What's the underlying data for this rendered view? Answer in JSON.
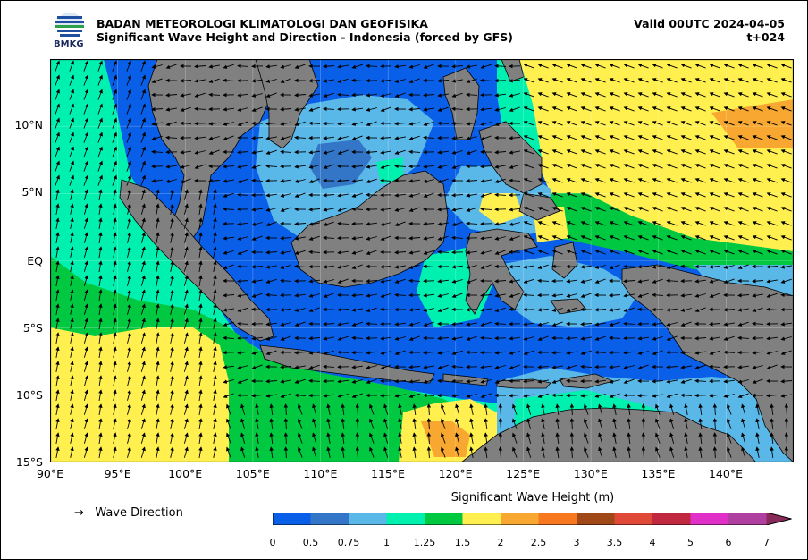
{
  "header": {
    "agency": "BADAN METEOROLOGI KLIMATOLOGI DAN GEOFISIKA",
    "product": "Significant Wave Height and Direction - Indonesia (forced by GFS)",
    "valid": "Valid 00UTC 2024-04-05",
    "lead": "t+024",
    "logo_text": "BMKG"
  },
  "map": {
    "lat_labels": [
      "10°N",
      "5°N",
      "EQ",
      "5°S",
      "10°S",
      "15°S"
    ],
    "lon_labels": [
      "90°E",
      "95°E",
      "100°E",
      "105°E",
      "110°E",
      "115°E",
      "120°E",
      "125°E",
      "130°E",
      "135°E",
      "140°E"
    ],
    "extent": {
      "lon": [
        90,
        145
      ],
      "lat": [
        -15,
        15
      ]
    },
    "land_color": "#808080"
  },
  "legend": {
    "arrow": "→",
    "label": "Wave Direction"
  },
  "colorbar": {
    "title": "Significant Wave Height (m)",
    "ticks": [
      "0",
      "0.5",
      "0.75",
      "1",
      "1.25",
      "1.5",
      "2",
      "2.5",
      "3",
      "3.5",
      "4",
      "5",
      "6",
      "7"
    ],
    "colors": [
      "#0a5fe8",
      "#3376c8",
      "#5ab8e8",
      "#00f0b0",
      "#00c840",
      "#fff050",
      "#f8a830",
      "#f87820",
      "#a04818",
      "#e04838",
      "#c02840",
      "#e030c8",
      "#b040a0",
      "#8a2a5a"
    ]
  }
}
